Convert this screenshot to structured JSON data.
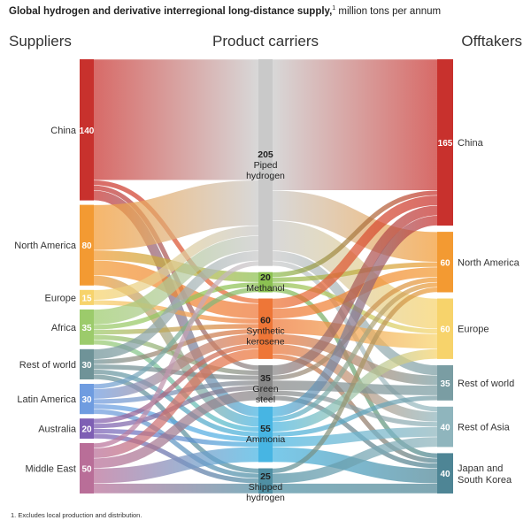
{
  "title": {
    "bold": "Global hydrogen and derivative interregional long-distance supply,",
    "sup": "1",
    "rest": " million tons per annum"
  },
  "headers": {
    "suppliers": "Suppliers",
    "carriers": "Product carriers",
    "offtakers": "Offtakers"
  },
  "footnote": "1.  Excludes local production and distribution.",
  "chart_data": {
    "type": "sankey",
    "units": "million tons per annum",
    "suppliers": [
      {
        "name": "China",
        "value": 140,
        "color": "#c8312d"
      },
      {
        "name": "North America",
        "value": 80,
        "color": "#f39a32"
      },
      {
        "name": "Europe",
        "value": 15,
        "color": "#f7d36b"
      },
      {
        "name": "Africa",
        "value": 35,
        "color": "#9ccb6b"
      },
      {
        "name": "Rest of world",
        "value": 30,
        "color": "#6f9398"
      },
      {
        "name": "Latin America",
        "value": 30,
        "color": "#6f9ce0"
      },
      {
        "name": "Australia",
        "value": 20,
        "color": "#7e5fb4"
      },
      {
        "name": "Middle East",
        "value": 50,
        "color": "#b96e98"
      }
    ],
    "carriers": [
      {
        "name": "Piped hydrogen",
        "value": 205,
        "color": "#c9c9c9"
      },
      {
        "name": "Methanol",
        "value": 20,
        "color": "#8cc152"
      },
      {
        "name": "Synthetic kerosene",
        "value": 60,
        "color": "#ee7637"
      },
      {
        "name": "Green steel",
        "value": 35,
        "color": "#888888"
      },
      {
        "name": "Ammonia",
        "value": 55,
        "color": "#47b5e3"
      },
      {
        "name": "Shipped hydrogen",
        "value": 25,
        "color": "#4f8fa3"
      }
    ],
    "offtakers": [
      {
        "name": "China",
        "value": 165,
        "color": "#c8312d"
      },
      {
        "name": "North America",
        "value": 60,
        "color": "#f39a32"
      },
      {
        "name": "Europe",
        "value": 60,
        "color": "#f7d36b"
      },
      {
        "name": "Rest of world",
        "value": 35,
        "color": "#7a9da3"
      },
      {
        "name": "Rest of Asia",
        "value": 40,
        "color": "#8fb5bd"
      },
      {
        "name": "Japan and South Korea",
        "value": 40,
        "color": "#4e8595"
      }
    ],
    "flows_supplier_to_carrier": [
      [
        "China",
        "Piped hydrogen",
        120
      ],
      [
        "China",
        "Synthetic kerosene",
        5
      ],
      [
        "China",
        "Ammonia",
        10
      ],
      [
        "China",
        "Green steel",
        5
      ],
      [
        "North America",
        "Piped hydrogen",
        45
      ],
      [
        "North America",
        "Methanol",
        10
      ],
      [
        "North America",
        "Synthetic kerosene",
        15
      ],
      [
        "North America",
        "Ammonia",
        10
      ],
      [
        "Europe",
        "Piped hydrogen",
        10
      ],
      [
        "Europe",
        "Synthetic kerosene",
        5
      ],
      [
        "Africa",
        "Piped hydrogen",
        15
      ],
      [
        "Africa",
        "Methanol",
        5
      ],
      [
        "Africa",
        "Synthetic kerosene",
        5
      ],
      [
        "Africa",
        "Ammonia",
        5
      ],
      [
        "Africa",
        "Green steel",
        5
      ],
      [
        "Rest of world",
        "Piped hydrogen",
        10
      ],
      [
        "Rest of world",
        "Synthetic kerosene",
        5
      ],
      [
        "Rest of world",
        "Green steel",
        5
      ],
      [
        "Rest of world",
        "Ammonia",
        5
      ],
      [
        "Rest of world",
        "Shipped hydrogen",
        5
      ],
      [
        "Latin America",
        "Synthetic kerosene",
        10
      ],
      [
        "Latin America",
        "Methanol",
        5
      ],
      [
        "Latin America",
        "Green steel",
        5
      ],
      [
        "Latin America",
        "Ammonia",
        5
      ],
      [
        "Latin America",
        "Shipped hydrogen",
        5
      ],
      [
        "Australia",
        "Synthetic kerosene",
        5
      ],
      [
        "Australia",
        "Green steel",
        5
      ],
      [
        "Australia",
        "Ammonia",
        5
      ],
      [
        "Australia",
        "Shipped hydrogen",
        5
      ],
      [
        "Middle East",
        "Piped hydrogen",
        5
      ],
      [
        "Middle East",
        "Synthetic kerosene",
        10
      ],
      [
        "Middle East",
        "Green steel",
        10
      ],
      [
        "Middle East",
        "Ammonia",
        15
      ],
      [
        "Middle East",
        "Shipped hydrogen",
        10
      ]
    ],
    "flows_carrier_to_offtaker": [
      [
        "Piped hydrogen",
        "China",
        130
      ],
      [
        "Piped hydrogen",
        "North America",
        30
      ],
      [
        "Piped hydrogen",
        "Europe",
        30
      ],
      [
        "Piped hydrogen",
        "Rest of world",
        10
      ],
      [
        "Piped hydrogen",
        "Rest of Asia",
        5
      ],
      [
        "Methanol",
        "China",
        5
      ],
      [
        "Methanol",
        "North America",
        5
      ],
      [
        "Methanol",
        "Europe",
        5
      ],
      [
        "Methanol",
        "Japan and South Korea",
        5
      ],
      [
        "Synthetic kerosene",
        "China",
        10
      ],
      [
        "Synthetic kerosene",
        "North America",
        10
      ],
      [
        "Synthetic kerosene",
        "Europe",
        15
      ],
      [
        "Synthetic kerosene",
        "Rest of world",
        10
      ],
      [
        "Synthetic kerosene",
        "Rest of Asia",
        10
      ],
      [
        "Synthetic kerosene",
        "Japan and South Korea",
        5
      ],
      [
        "Green steel",
        "China",
        10
      ],
      [
        "Green steel",
        "North America",
        5
      ],
      [
        "Green steel",
        "Rest of world",
        10
      ],
      [
        "Green steel",
        "Rest of Asia",
        5
      ],
      [
        "Green steel",
        "Japan and South Korea",
        5
      ],
      [
        "Ammonia",
        "China",
        10
      ],
      [
        "Ammonia",
        "North America",
        5
      ],
      [
        "Ammonia",
        "Europe",
        10
      ],
      [
        "Ammonia",
        "Rest of world",
        5
      ],
      [
        "Ammonia",
        "Rest of Asia",
        10
      ],
      [
        "Ammonia",
        "Japan and South Korea",
        15
      ],
      [
        "Shipped hydrogen",
        "North America",
        5
      ],
      [
        "Shipped hydrogen",
        "Rest of Asia",
        10
      ],
      [
        "Shipped hydrogen",
        "Japan and South Korea",
        10
      ]
    ]
  }
}
